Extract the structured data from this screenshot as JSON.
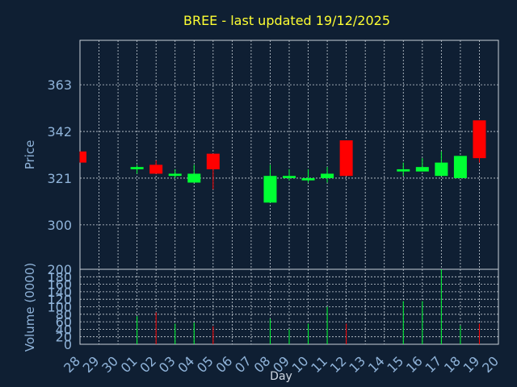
{
  "chart_data": {
    "type": "candlestick",
    "title": "BREE - last updated 19/12/2025",
    "xlabel": "Day",
    "colors": {
      "up": "#00ff33",
      "down": "#ff0000",
      "title": "#ffff33",
      "axis_text": "#8fb3d9",
      "background": "#0f1f33",
      "grid": "#c8d0d8"
    },
    "price_panel": {
      "ylabel": "Price",
      "ylim": [
        280,
        383
      ],
      "yticks": [
        300,
        321,
        342,
        363
      ],
      "grid": true
    },
    "volume_panel": {
      "ylabel": "Volume (0000)",
      "ylim": [
        0,
        200
      ],
      "yticks": [
        0,
        20,
        40,
        60,
        80,
        100,
        120,
        140,
        160,
        180,
        200
      ],
      "grid": true
    },
    "days": [
      "28",
      "29",
      "30",
      "01",
      "02",
      "03",
      "04",
      "05",
      "06",
      "07",
      "08",
      "09",
      "10",
      "11",
      "12",
      "13",
      "14",
      "15",
      "16",
      "17",
      "18",
      "19",
      "20"
    ],
    "candles": [
      {
        "day": "28",
        "open": 333,
        "close": 328,
        "high": 333,
        "low": 328,
        "volume": 0
      },
      {
        "day": "01",
        "open": 325,
        "close": 326,
        "high": 327,
        "low": 323,
        "volume": 75
      },
      {
        "day": "02",
        "open": 327,
        "close": 323,
        "high": 329,
        "low": 323,
        "volume": 85
      },
      {
        "day": "03",
        "open": 322,
        "close": 323,
        "high": 325,
        "low": 321,
        "volume": 55
      },
      {
        "day": "04",
        "open": 319,
        "close": 323,
        "high": 327,
        "low": 319,
        "volume": 58
      },
      {
        "day": "05",
        "open": 332,
        "close": 325,
        "high": 332,
        "low": 316,
        "volume": 48
      },
      {
        "day": "08",
        "open": 310,
        "close": 322,
        "high": 327,
        "low": 310,
        "volume": 68
      },
      {
        "day": "09",
        "open": 321,
        "close": 322,
        "high": 325,
        "low": 320,
        "volume": 40
      },
      {
        "day": "10",
        "open": 320,
        "close": 321,
        "high": 325,
        "low": 319,
        "volume": 55
      },
      {
        "day": "11",
        "open": 321,
        "close": 323,
        "high": 326,
        "low": 319,
        "volume": 100
      },
      {
        "day": "12",
        "open": 338,
        "close": 322,
        "high": 338,
        "low": 322,
        "volume": 55
      },
      {
        "day": "15",
        "open": 324,
        "close": 325,
        "high": 328,
        "low": 322,
        "volume": 115
      },
      {
        "day": "16",
        "open": 324,
        "close": 326,
        "high": 330,
        "low": 324,
        "volume": 115
      },
      {
        "day": "17",
        "open": 322,
        "close": 328,
        "high": 333,
        "low": 322,
        "volume": 200
      },
      {
        "day": "18",
        "open": 321,
        "close": 331,
        "high": 331,
        "low": 321,
        "volume": 50
      },
      {
        "day": "19",
        "open": 347,
        "close": 330,
        "high": 347,
        "low": 328,
        "volume": 55
      }
    ]
  }
}
